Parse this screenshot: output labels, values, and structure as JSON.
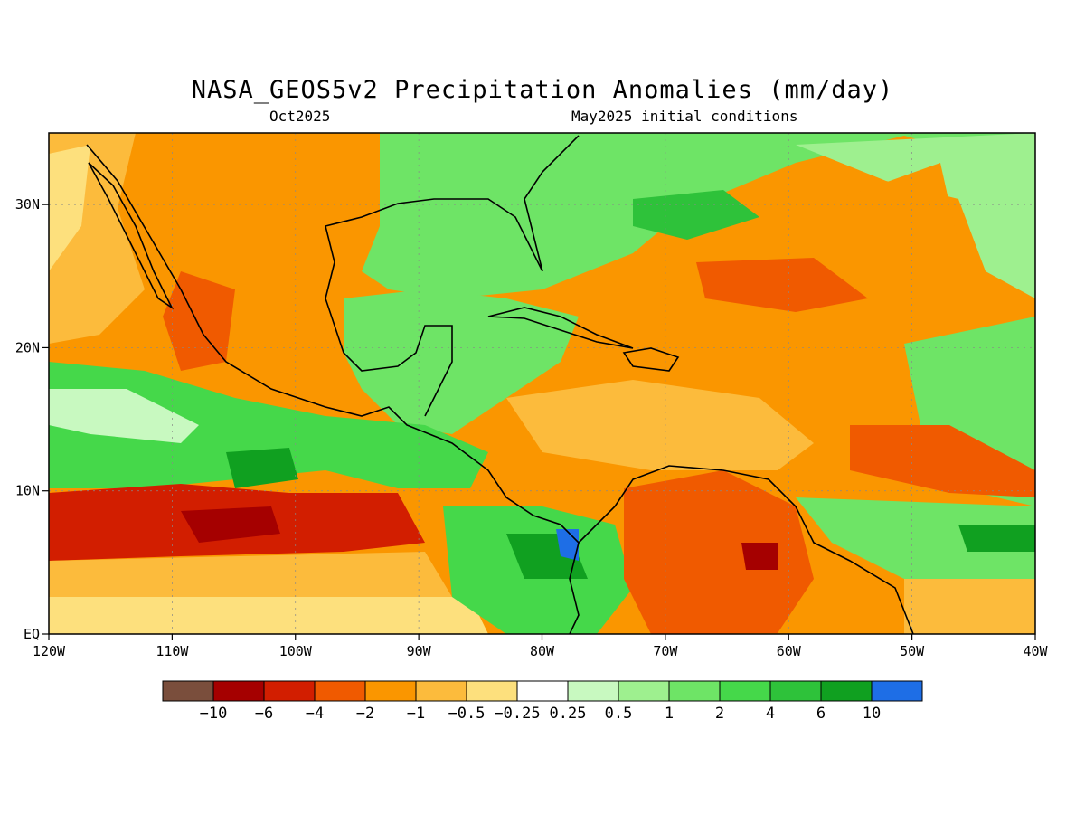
{
  "title": "NASA_GEOS5v2 Precipitation Anomalies (mm/day)",
  "subtitle_left": "Oct2025",
  "subtitle_right": "May2025 initial conditions",
  "map": {
    "lon_range": [
      -120,
      -40
    ],
    "lat_range": [
      0,
      35
    ],
    "lon_ticks": [
      {
        "value": -120,
        "label": "120W"
      },
      {
        "value": -110,
        "label": "110W"
      },
      {
        "value": -100,
        "label": "100W"
      },
      {
        "value": -90,
        "label": "90W"
      },
      {
        "value": -80,
        "label": "80W"
      },
      {
        "value": -70,
        "label": "70W"
      },
      {
        "value": -60,
        "label": "60W"
      },
      {
        "value": -50,
        "label": "50W"
      },
      {
        "value": -40,
        "label": "40W"
      }
    ],
    "lat_ticks": [
      {
        "value": 0,
        "label": "EQ"
      },
      {
        "value": 10,
        "label": "10N"
      },
      {
        "value": 20,
        "label": "20N"
      },
      {
        "value": 30,
        "label": "30N"
      }
    ],
    "grid": true
  },
  "colorbar": {
    "colors": [
      "#7a4e3c",
      "#a50000",
      "#d21e00",
      "#f05a00",
      "#fa9600",
      "#fcbb3c",
      "#fde07d",
      "#ffffff",
      "#c8f9c0",
      "#9ef08f",
      "#6ee466",
      "#45d84a",
      "#2ec23a",
      "#10a020",
      "#1e6ee6"
    ],
    "labels": [
      "-10",
      "-6",
      "-4",
      "-2",
      "-1",
      "-0.5",
      "-0.25",
      "0.25",
      "0.5",
      "1",
      "2",
      "4",
      "6",
      "10"
    ]
  },
  "colors": {
    "strong_dry": "#d21e00",
    "dry": "#fa9600",
    "slightly_dry": "#fcbb3c",
    "wet": "#6ee466",
    "strong_wet": "#10a020",
    "very_wet": "#1e6ee6"
  }
}
